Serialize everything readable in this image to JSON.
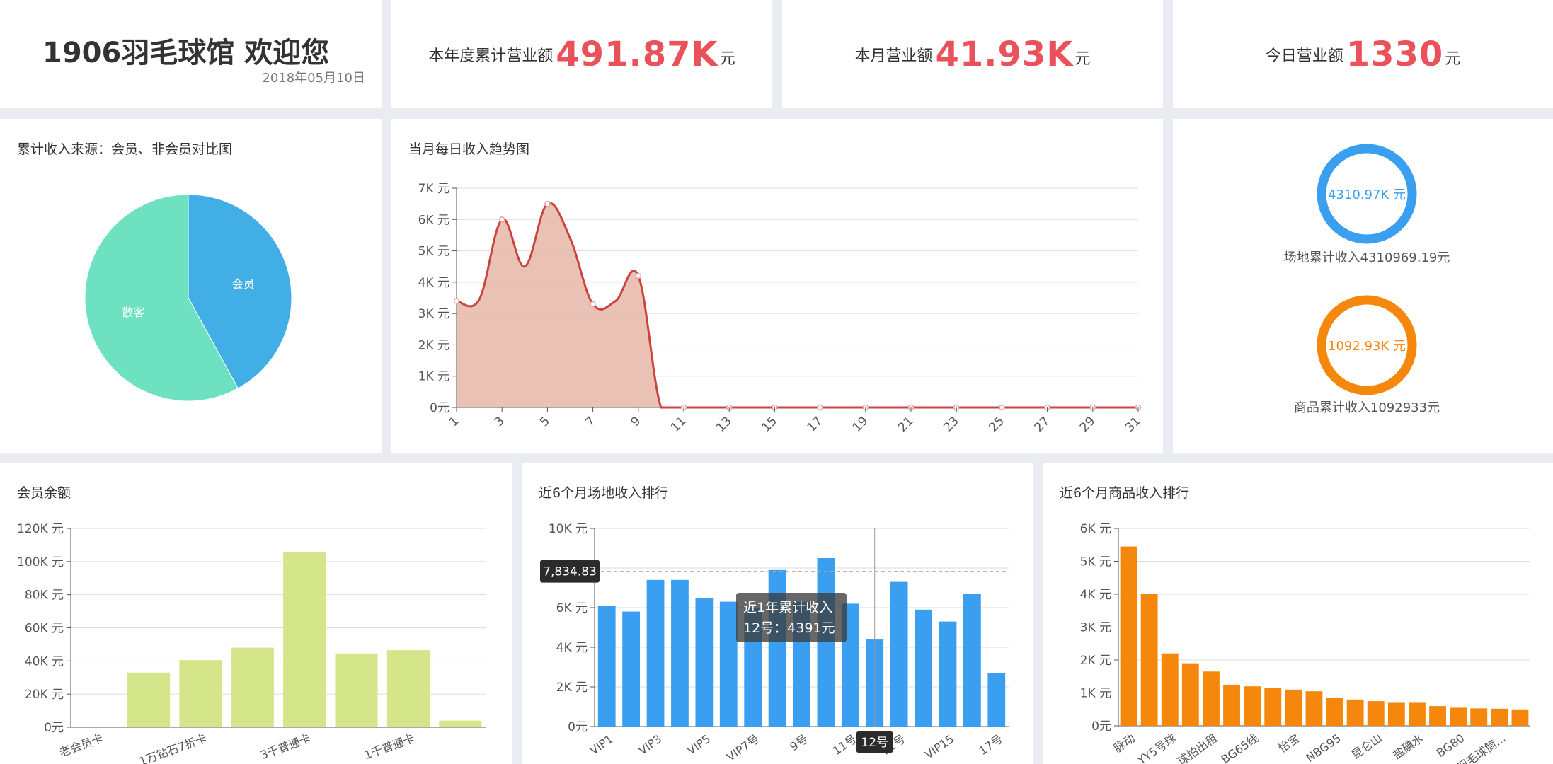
{
  "welcome": {
    "title": "1906羽毛球馆 欢迎您",
    "date": "2018年05月10日"
  },
  "kpis": [
    {
      "label": "本年度累计营业额",
      "value": "491.87K",
      "unit": "元"
    },
    {
      "label": "本月营业额",
      "value": "41.93K",
      "unit": "元"
    },
    {
      "label": "今日营业额",
      "value": "1330",
      "unit": "元"
    }
  ],
  "panels": {
    "pie_title": "累计收入来源：会员、非会员对比图",
    "trend_title": "当月每日收入趋势图",
    "balance_title": "会员余额",
    "venue_title": "近6个月场地收入排行",
    "goods_title": "近6个月商品收入排行"
  },
  "rings": [
    {
      "center": "4310.97K 元",
      "label": "场地累计收入4310969.19元",
      "color": "#3a9ff0"
    },
    {
      "center": "1092.93K 元",
      "label": "商品累计收入1092933元",
      "color": "#f5880c"
    }
  ],
  "tooltip": {
    "title": "近1年累计收入",
    "line": "12号：4391元",
    "marker": "7,834.83",
    "axis_pointer": "12号"
  },
  "colors": {
    "kpi_value": "#e9525a",
    "pie_member": "#42aee6",
    "pie_guest": "#6ee2c0",
    "trend": "#c9453f",
    "balance": "#d5e589",
    "venue": "#3a9ff0",
    "goods": "#f5880c"
  },
  "chart_data": [
    {
      "id": "pie",
      "type": "pie",
      "title": "累计收入来源：会员、非会员对比图",
      "categories": [
        "会员",
        "散客"
      ],
      "values": [
        42,
        58
      ]
    },
    {
      "id": "trend",
      "type": "area",
      "title": "当月每日收入趋势图",
      "x": [
        1,
        2,
        3,
        4,
        5,
        6,
        7,
        8,
        9,
        10,
        11,
        12,
        13,
        14,
        15,
        16,
        17,
        18,
        19,
        20,
        21,
        22,
        23,
        24,
        25,
        26,
        27,
        28,
        29,
        30,
        31
      ],
      "x_ticks": [
        "1",
        "3",
        "5",
        "7",
        "9",
        "11",
        "13",
        "15",
        "17",
        "19",
        "21",
        "23",
        "25",
        "27",
        "29",
        "31"
      ],
      "values": [
        3400,
        3450,
        6000,
        4500,
        6500,
        5400,
        3300,
        3400,
        4200,
        0,
        0,
        0,
        0,
        0,
        0,
        0,
        0,
        0,
        0,
        0,
        0,
        0,
        0,
        0,
        0,
        0,
        0,
        0,
        0,
        0,
        0
      ],
      "yticks": [
        "0元",
        "1K 元",
        "2K 元",
        "3K 元",
        "4K 元",
        "5K 元",
        "6K 元",
        "7K 元"
      ],
      "ylim": [
        0,
        7000
      ]
    },
    {
      "id": "balance",
      "type": "bar",
      "title": "会员余额",
      "x_ticks": [
        "老会员卡",
        "1万钻石7折卡",
        "3千普通卡",
        "1千普通卡"
      ],
      "values": [
        0,
        33000,
        40500,
        48000,
        105500,
        44500,
        46500,
        4000
      ],
      "yticks": [
        "0元",
        "20K 元",
        "40K 元",
        "60K 元",
        "80K 元",
        "100K 元",
        "120K 元"
      ],
      "ylim": [
        0,
        120000
      ]
    },
    {
      "id": "venue",
      "type": "bar",
      "title": "近6个月场地收入排行",
      "x_ticks": [
        "VIP1",
        "VIP3",
        "VIP5",
        "VIP7号",
        "9号",
        "11号",
        "12号",
        "VIP15",
        "17号"
      ],
      "values": [
        6100,
        5800,
        7400,
        7400,
        6500,
        6300,
        6000,
        7900,
        6300,
        8500,
        6200,
        4391,
        7300,
        5900,
        5300,
        6700,
        2700
      ],
      "yticks": [
        "0元",
        "2K 元",
        "4K 元",
        "6K 元",
        "8K 元",
        "10K 元"
      ],
      "ylim": [
        0,
        10000
      ]
    },
    {
      "id": "goods",
      "type": "bar",
      "title": "近6个月商品收入排行",
      "x_ticks": [
        "脉动",
        "YY5号球",
        "球拍出租",
        "BG65线",
        "怡宝",
        "NBG95",
        "昆仑山",
        "盐碘水",
        "BG80",
        "伯宏羽毛球筒..."
      ],
      "values": [
        5450,
        4000,
        2200,
        1900,
        1650,
        1250,
        1200,
        1150,
        1100,
        1050,
        850,
        800,
        750,
        700,
        700,
        600,
        550,
        530,
        520,
        500
      ],
      "yticks": [
        "0元",
        "1K 元",
        "2K 元",
        "3K 元",
        "4K 元",
        "5K 元",
        "6K 元"
      ],
      "ylim": [
        0,
        6000
      ]
    }
  ]
}
